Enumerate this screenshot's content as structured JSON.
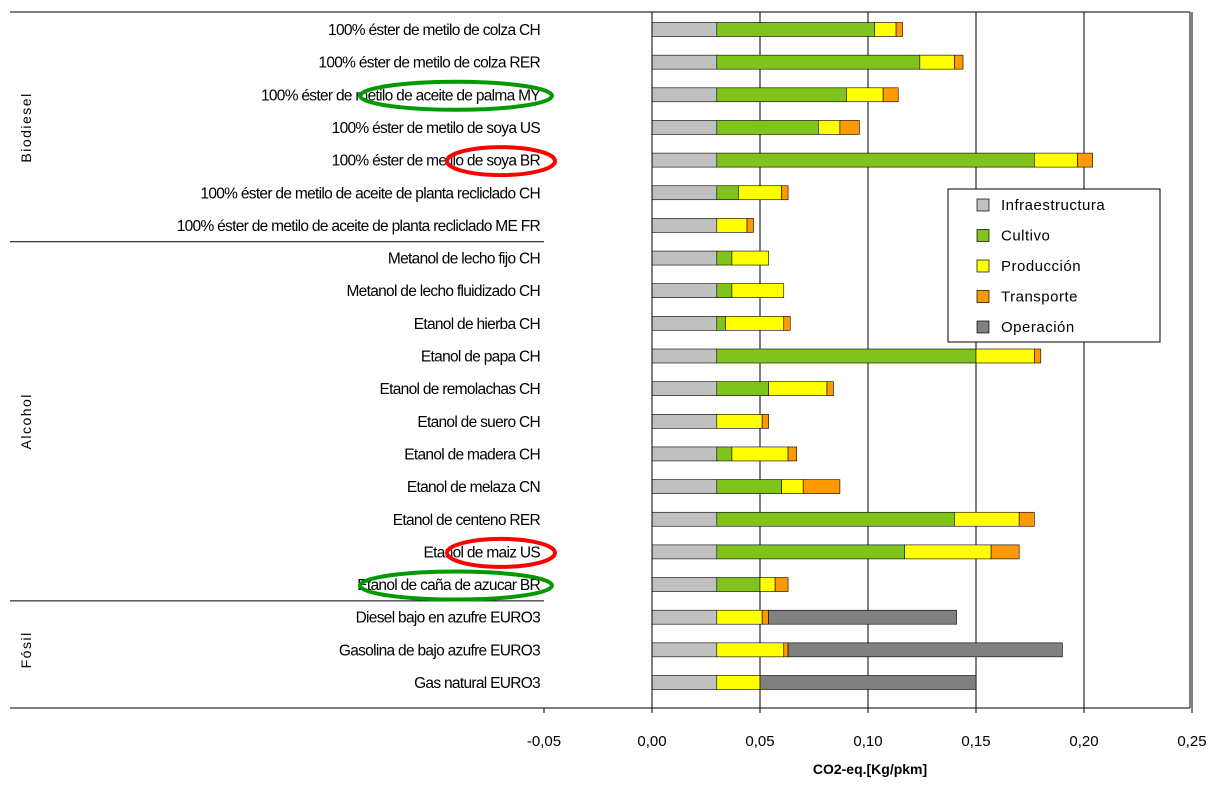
{
  "chart_data": {
    "type": "bar",
    "orientation": "horizontal",
    "stacked": true,
    "xlabel": "CO2-eq.[Kg/pkm]",
    "xlim": [
      -0.05,
      0.25
    ],
    "xticks": [
      "-0,05",
      "0,00",
      "0,05",
      "0,10",
      "0,15",
      "0,20",
      "0,25"
    ],
    "xtick_values": [
      -0.05,
      0,
      0.05,
      0.1,
      0.15,
      0.2,
      0.25
    ],
    "grid": "vertical",
    "legend_position": "right",
    "groups": [
      {
        "label": "Biodiesel",
        "start": 0,
        "end": 6
      },
      {
        "label": "Alcohol",
        "start": 7,
        "end": 17
      },
      {
        "label": "Fósil",
        "start": 18,
        "end": 20
      }
    ],
    "categories": [
      "100% éster de metilo de colza CH",
      "100% éster de metilo de colza RER",
      "100% éster de metilo de aceite de palma MY",
      "100% éster de metilo de soya US",
      "100% éster de metilo de soya BR",
      "100% éster de metilo de aceite de planta recliclado CH",
      "100% éster de metilo de aceite de planta recliclado  ME FR",
      "Metanol de lecho fijo CH",
      "Metanol de lecho fluidizado CH",
      "Etanol de hierba CH",
      "Etanol de papa CH",
      "Etanol de remolachas CH",
      "Etanol de suero CH",
      "Etanol de madera CH",
      "Etanol de melaza CN",
      "Etanol de centeno RER",
      "Etanol de maiz US",
      "Etanol de caña de azucar BR",
      "Diesel bajo en azufre EURO3",
      "Gasolina de bajo azufre EURO3",
      "Gas natural EURO3"
    ],
    "series": [
      {
        "name": "Infraestructura",
        "color": "#c0c0c0",
        "values": [
          0.03,
          0.03,
          0.03,
          0.03,
          0.03,
          0.03,
          0.03,
          0.03,
          0.03,
          0.03,
          0.03,
          0.03,
          0.03,
          0.03,
          0.03,
          0.03,
          0.03,
          0.03,
          0.03,
          0.03,
          0.03
        ]
      },
      {
        "name": "Cultivo",
        "color": "#80c31c",
        "values": [
          0.073,
          0.094,
          0.06,
          0.047,
          0.147,
          0.01,
          0,
          0.007,
          0.007,
          0.004,
          0.12,
          0.024,
          0,
          0.007,
          0.03,
          0.11,
          0.087,
          0.02,
          0,
          0,
          0
        ]
      },
      {
        "name": "Producción",
        "color": "#ffff00",
        "values": [
          0.01,
          0.016,
          0.017,
          0.01,
          0.02,
          0.02,
          0.014,
          0.017,
          0.024,
          0.027,
          0.027,
          0.027,
          0.021,
          0.026,
          0.01,
          0.03,
          0.04,
          0.007,
          0.021,
          0.031,
          0.02
        ]
      },
      {
        "name": "Transporte",
        "color": "#ff9900",
        "values": [
          0.003,
          0.004,
          0.007,
          0.009,
          0.007,
          0.003,
          0.003,
          0,
          0,
          0.003,
          0.003,
          0.003,
          0.003,
          0.004,
          0.017,
          0.007,
          0.013,
          0.006,
          0.003,
          0.002,
          0
        ]
      },
      {
        "name": "Operación",
        "color": "#808080",
        "values": [
          0,
          0,
          0,
          0,
          0,
          0,
          0,
          0,
          0,
          0,
          0,
          0,
          0,
          0,
          0,
          0,
          0,
          0,
          0.087,
          0.127,
          0.1
        ]
      }
    ],
    "annotations": [
      {
        "category_index": 2,
        "shape": "ellipse",
        "color": "#009900"
      },
      {
        "category_index": 4,
        "shape": "ellipse",
        "color": "#ff0000"
      },
      {
        "category_index": 16,
        "shape": "ellipse",
        "color": "#ff0000"
      },
      {
        "category_index": 17,
        "shape": "ellipse",
        "color": "#009900"
      }
    ]
  }
}
